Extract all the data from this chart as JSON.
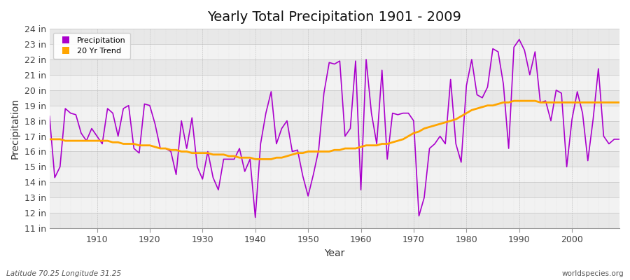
{
  "title": "Yearly Total Precipitation 1901 - 2009",
  "xlabel": "Year",
  "ylabel": "Precipitation",
  "xlim": [
    1901,
    2009
  ],
  "ylim": [
    11,
    24
  ],
  "yticks": [
    11,
    12,
    13,
    14,
    15,
    16,
    17,
    18,
    19,
    20,
    21,
    22,
    23,
    24
  ],
  "ytick_labels": [
    "11 in",
    "12 in",
    "13 in",
    "14 in",
    "15 in",
    "16 in",
    "17 in",
    "18 in",
    "19 in",
    "20 in",
    "21 in",
    "22 in",
    "23 in",
    "24 in"
  ],
  "xticks": [
    1910,
    1920,
    1930,
    1940,
    1950,
    1960,
    1970,
    1980,
    1990,
    2000
  ],
  "precipitation_color": "#AA00CC",
  "trend_color": "#FFA500",
  "bg_color": "#FFFFFF",
  "plot_bg_color": "#F0F0F0",
  "band_colors": [
    "#E8E8E8",
    "#F2F2F2"
  ],
  "grid_color": "#CCCCCC",
  "footer_left": "Latitude 70.25 Longitude 31.25",
  "footer_right": "worldspecies.org",
  "years": [
    1901,
    1902,
    1903,
    1904,
    1905,
    1906,
    1907,
    1908,
    1909,
    1910,
    1911,
    1912,
    1913,
    1914,
    1915,
    1916,
    1917,
    1918,
    1919,
    1920,
    1921,
    1922,
    1923,
    1924,
    1925,
    1926,
    1927,
    1928,
    1929,
    1930,
    1931,
    1932,
    1933,
    1934,
    1935,
    1936,
    1937,
    1938,
    1939,
    1940,
    1941,
    1942,
    1943,
    1944,
    1945,
    1946,
    1947,
    1948,
    1949,
    1950,
    1951,
    1952,
    1953,
    1954,
    1955,
    1956,
    1957,
    1958,
    1959,
    1960,
    1961,
    1962,
    1963,
    1964,
    1965,
    1966,
    1967,
    1968,
    1969,
    1970,
    1971,
    1972,
    1973,
    1974,
    1975,
    1976,
    1977,
    1978,
    1979,
    1980,
    1981,
    1982,
    1983,
    1984,
    1985,
    1986,
    1987,
    1988,
    1989,
    1990,
    1991,
    1992,
    1993,
    1994,
    1995,
    1996,
    1997,
    1998,
    1999,
    2000,
    2001,
    2002,
    2003,
    2004,
    2005,
    2006,
    2007,
    2008,
    2009
  ],
  "precip_values": [
    18.3,
    14.3,
    15.0,
    18.8,
    18.5,
    18.4,
    17.2,
    16.7,
    17.5,
    17.0,
    16.5,
    18.8,
    18.5,
    17.0,
    18.8,
    19.0,
    16.2,
    15.9,
    19.1,
    19.0,
    17.8,
    16.2,
    16.2,
    16.0,
    14.5,
    18.0,
    16.2,
    18.2,
    15.0,
    14.2,
    16.0,
    14.3,
    13.5,
    15.5,
    15.5,
    15.5,
    16.2,
    14.7,
    15.5,
    11.7,
    16.5,
    18.5,
    19.9,
    16.5,
    17.5,
    18.0,
    16.0,
    16.1,
    14.4,
    13.1,
    14.5,
    16.1,
    19.8,
    21.8,
    21.7,
    21.9,
    17.0,
    17.5,
    21.9,
    13.5,
    22.0,
    18.5,
    16.5,
    21.3,
    15.5,
    18.5,
    18.4,
    18.5,
    18.5,
    18.0,
    11.8,
    13.0,
    16.2,
    16.5,
    17.0,
    16.5,
    20.7,
    16.5,
    15.3,
    20.3,
    22.0,
    19.7,
    19.5,
    20.2,
    22.7,
    22.5,
    20.4,
    16.2,
    22.8,
    23.3,
    22.6,
    21.0,
    22.5,
    19.2,
    19.3,
    18.0,
    20.0,
    19.8,
    15.0,
    18.1,
    19.9,
    18.5,
    15.4,
    18.1,
    21.4,
    17.0,
    16.5,
    16.8,
    16.8
  ],
  "trend_values": [
    16.8,
    16.8,
    16.8,
    16.7,
    16.7,
    16.7,
    16.7,
    16.7,
    16.7,
    16.7,
    16.7,
    16.7,
    16.6,
    16.6,
    16.5,
    16.5,
    16.5,
    16.4,
    16.4,
    16.4,
    16.3,
    16.2,
    16.2,
    16.1,
    16.1,
    16.0,
    16.0,
    15.9,
    15.9,
    15.9,
    15.9,
    15.8,
    15.8,
    15.8,
    15.7,
    15.7,
    15.6,
    15.6,
    15.6,
    15.5,
    15.5,
    15.5,
    15.5,
    15.6,
    15.6,
    15.7,
    15.8,
    15.9,
    15.9,
    16.0,
    16.0,
    16.0,
    16.0,
    16.0,
    16.1,
    16.1,
    16.2,
    16.2,
    16.2,
    16.3,
    16.4,
    16.4,
    16.4,
    16.5,
    16.5,
    16.6,
    16.7,
    16.8,
    17.0,
    17.2,
    17.3,
    17.5,
    17.6,
    17.7,
    17.8,
    17.9,
    18.0,
    18.1,
    18.3,
    18.5,
    18.7,
    18.8,
    18.9,
    19.0,
    19.0,
    19.1,
    19.2,
    19.2,
    19.3,
    19.3,
    19.3,
    19.3,
    19.3,
    19.2,
    19.2,
    19.2,
    19.2,
    19.2,
    19.2,
    19.2,
    19.2,
    19.2,
    19.2,
    19.2,
    19.2,
    19.2,
    19.2,
    19.2,
    19.2
  ]
}
